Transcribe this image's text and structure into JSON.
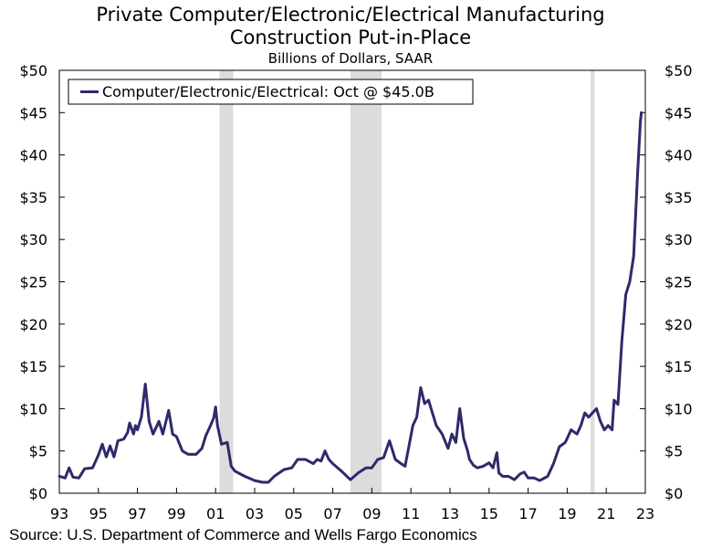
{
  "chart_data": {
    "type": "line",
    "title": "Private Computer/Electronic/Electrical Manufacturing",
    "title_line2": "Construction Put-in-Place",
    "subtitle": "Billions of Dollars, SAAR",
    "xlabel": "",
    "ylabel": "",
    "xlim": [
      1993.0,
      2023.0
    ],
    "ylim": [
      0,
      50
    ],
    "y_ticks": [
      0,
      5,
      10,
      15,
      20,
      25,
      30,
      35,
      40,
      45,
      50
    ],
    "y_tick_labels": [
      "$0",
      "$5",
      "$10",
      "$15",
      "$20",
      "$25",
      "$30",
      "$35",
      "$40",
      "$45",
      "$50"
    ],
    "x_ticks": [
      1993,
      1995,
      1997,
      1999,
      2001,
      2003,
      2005,
      2007,
      2009,
      2011,
      2013,
      2015,
      2017,
      2019,
      2021,
      2023
    ],
    "x_tick_labels": [
      "93",
      "95",
      "97",
      "99",
      "01",
      "03",
      "05",
      "07",
      "09",
      "11",
      "13",
      "15",
      "17",
      "19",
      "21",
      "23"
    ],
    "recessions": [
      [
        2001.2,
        2001.9
      ],
      [
        2007.9,
        2009.5
      ],
      [
        2020.2,
        2020.4
      ]
    ],
    "legend": {
      "label": "Computer/Electronic/Electrical: Oct @ $45.0B",
      "position": "top-left"
    },
    "colors": {
      "line": "#2e2a6b",
      "recession": "#dcdcdc",
      "axis": "#000000"
    },
    "series": [
      {
        "name": "Computer/Electronic/Electrical",
        "x": [
          1993.0,
          1993.3,
          1993.5,
          1993.7,
          1994.0,
          1994.3,
          1994.7,
          1995.0,
          1995.2,
          1995.4,
          1995.6,
          1995.8,
          1996.0,
          1996.3,
          1996.5,
          1996.6,
          1996.8,
          1996.9,
          1997.0,
          1997.2,
          1997.4,
          1997.6,
          1997.8,
          1998.0,
          1998.1,
          1998.3,
          1998.6,
          1998.8,
          1999.0,
          1999.3,
          1999.6,
          2000.0,
          2000.3,
          2000.5,
          2000.7,
          2000.9,
          2001.0,
          2001.1,
          2001.3,
          2001.6,
          2001.8,
          2002.0,
          2002.5,
          2003.0,
          2003.4,
          2003.7,
          2004.0,
          2004.5,
          2004.9,
          2005.2,
          2005.6,
          2006.0,
          2006.2,
          2006.4,
          2006.6,
          2006.8,
          2007.0,
          2007.5,
          2007.9,
          2008.3,
          2008.7,
          2009.0,
          2009.3,
          2009.6,
          2009.9,
          2010.2,
          2010.5,
          2010.7,
          2010.9,
          2011.1,
          2011.3,
          2011.5,
          2011.7,
          2011.9,
          2012.1,
          2012.3,
          2012.6,
          2012.9,
          2013.1,
          2013.3,
          2013.5,
          2013.7,
          2013.9,
          2014.0,
          2014.2,
          2014.4,
          2014.7,
          2015.0,
          2015.2,
          2015.4,
          2015.5,
          2015.7,
          2016.0,
          2016.3,
          2016.6,
          2016.8,
          2017.0,
          2017.3,
          2017.6,
          2018.0,
          2018.3,
          2018.6,
          2018.9,
          2019.2,
          2019.5,
          2019.7,
          2019.9,
          2020.1,
          2020.3,
          2020.5,
          2020.7,
          2020.9,
          2021.1,
          2021.3,
          2021.4,
          2021.6,
          2021.8,
          2022.0,
          2022.2,
          2022.4,
          2022.6,
          2022.75,
          2022.8
        ],
        "values": [
          2.0,
          1.8,
          3.0,
          1.9,
          1.8,
          2.9,
          3.0,
          4.5,
          5.8,
          4.3,
          5.6,
          4.3,
          6.2,
          6.4,
          7.2,
          8.3,
          7.0,
          8.0,
          7.5,
          9.0,
          12.9,
          8.5,
          7.0,
          8.0,
          8.5,
          7.0,
          9.8,
          7.0,
          6.7,
          5.0,
          4.6,
          4.6,
          5.3,
          6.8,
          7.8,
          8.9,
          10.2,
          8.0,
          5.8,
          6.0,
          3.2,
          2.6,
          2.0,
          1.5,
          1.3,
          1.3,
          2.0,
          2.8,
          3.0,
          4.0,
          4.0,
          3.5,
          4.0,
          3.8,
          5.0,
          4.0,
          3.5,
          2.5,
          1.6,
          2.4,
          3.0,
          3.0,
          4.0,
          4.2,
          6.2,
          4.0,
          3.5,
          3.2,
          5.6,
          8.0,
          9.0,
          12.5,
          10.6,
          11.0,
          9.5,
          8.0,
          7.0,
          5.3,
          7.0,
          6.0,
          10.0,
          6.5,
          5.0,
          4.0,
          3.3,
          3.0,
          3.2,
          3.6,
          3.0,
          4.8,
          2.4,
          2.0,
          2.0,
          1.6,
          2.3,
          2.5,
          1.8,
          1.8,
          1.5,
          2.0,
          3.5,
          5.5,
          6.0,
          7.5,
          7.0,
          8.0,
          9.5,
          9.0,
          9.5,
          10.0,
          8.5,
          7.5,
          8.0,
          7.5,
          11.0,
          10.5,
          18.0,
          23.5,
          25.0,
          28.0,
          37.5,
          44.0,
          45.0
        ]
      }
    ]
  },
  "source": "Source: U.S. Department of Commerce and Wells Fargo Economics"
}
